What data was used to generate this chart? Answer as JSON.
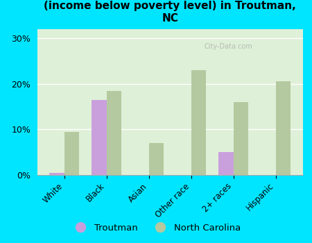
{
  "title": "Breakdown of poor residents within races\n(income below poverty level) in Troutman,\nNC",
  "categories": [
    "White",
    "Black",
    "Asian",
    "Other race",
    "2+ races",
    "Hispanic"
  ],
  "troutman": [
    0.5,
    16.5,
    0,
    0,
    5.0,
    0
  ],
  "north_carolina": [
    9.5,
    18.5,
    7.0,
    23.0,
    16.0,
    20.5
  ],
  "troutman_color": "#c9a0dc",
  "nc_color": "#b5c9a0",
  "background_outer": "#00e5ff",
  "background_plot": "#dff0d8",
  "ylim": [
    0,
    32
  ],
  "yticks": [
    0,
    10,
    20,
    30
  ],
  "ytick_labels": [
    "0%",
    "10%",
    "20%",
    "30%"
  ],
  "bar_width": 0.35,
  "title_fontsize": 11,
  "watermark": "City-Data.com"
}
